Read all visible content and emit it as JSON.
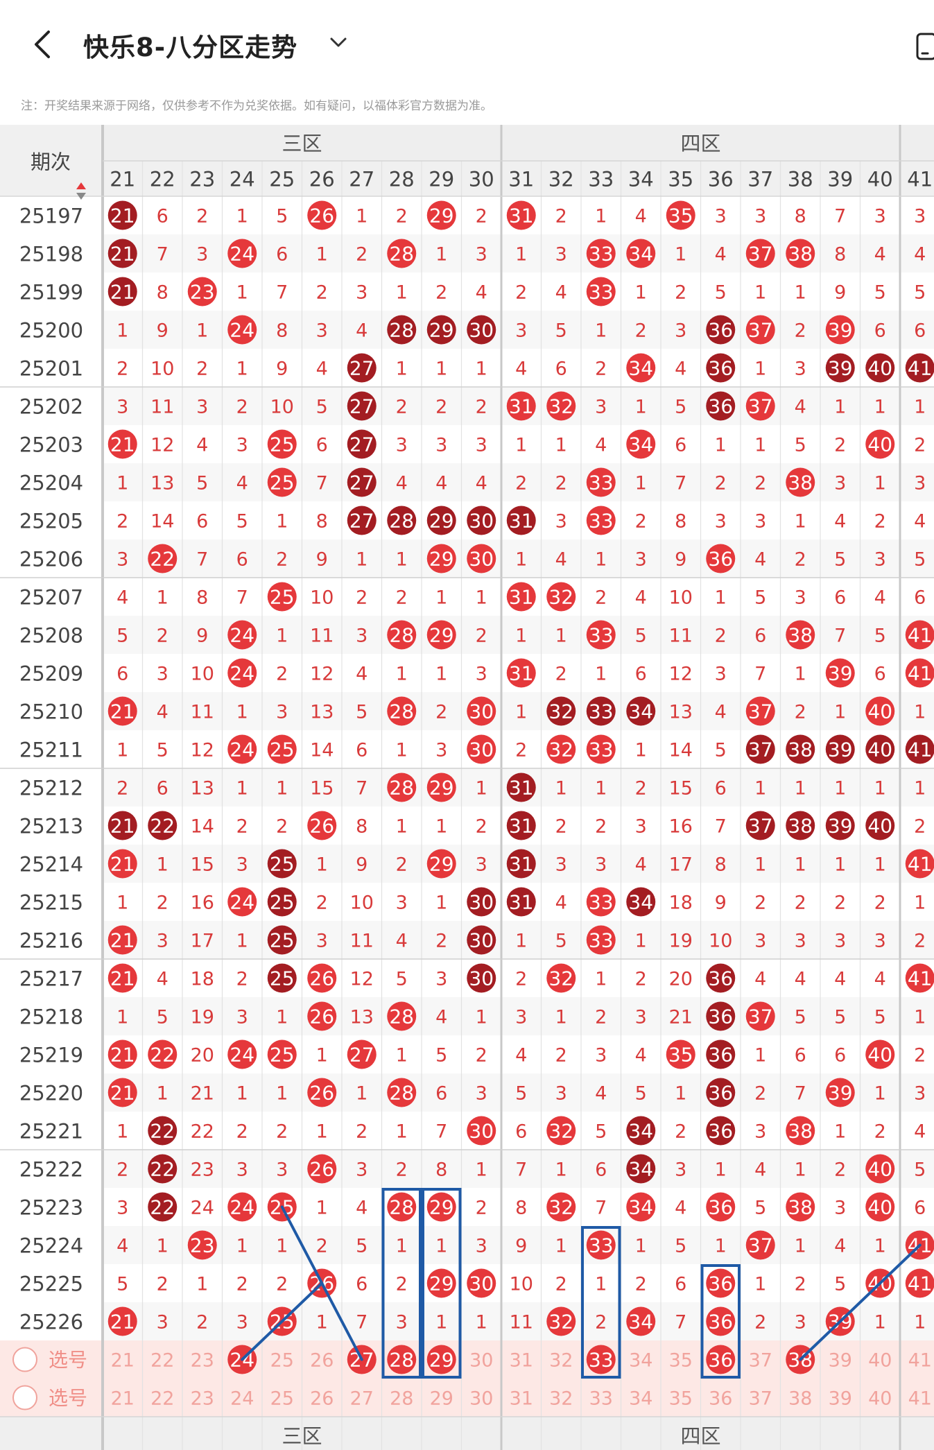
{
  "header": {
    "title": "快乐8-八分区走势",
    "back_icon": "chevron-left-icon",
    "dropdown_icon": "chevron-down-icon",
    "right_icon": "phone-icon"
  },
  "disclaimer": "注：开奖结果来源于网络，仅供参考不作为兑奖依据。如有疑问，以福体彩官方数据为准。",
  "table": {
    "period_header": "期次",
    "sort_icon": "sort-arrows-icon",
    "zones": [
      {
        "name": "三区",
        "start": 21,
        "end": 30
      },
      {
        "name": "四区",
        "start": 31,
        "end": 40
      }
    ],
    "columns": [
      21,
      22,
      23,
      24,
      25,
      26,
      27,
      28,
      29,
      30,
      31,
      32,
      33,
      34,
      35,
      36,
      37,
      38,
      39,
      40,
      41
    ],
    "rows": [
      {
        "period": "25197",
        "cells": [
          "21",
          "6",
          "2",
          "1",
          "5",
          "26",
          "1",
          "2",
          "29",
          "2",
          "31",
          "2",
          "1",
          "4",
          "35",
          "3",
          "3",
          "8",
          "7",
          "3",
          "3"
        ],
        "hits": [
          21,
          26,
          29,
          31,
          35
        ],
        "repeat": [
          21
        ]
      },
      {
        "period": "25198",
        "cells": [
          "21",
          "7",
          "3",
          "24",
          "6",
          "1",
          "2",
          "28",
          "1",
          "3",
          "1",
          "3",
          "33",
          "34",
          "1",
          "4",
          "37",
          "38",
          "8",
          "4",
          "4"
        ],
        "hits": [
          21,
          24,
          28,
          33,
          34,
          37,
          38
        ],
        "repeat": [
          21
        ]
      },
      {
        "period": "25199",
        "cells": [
          "21",
          "8",
          "23",
          "1",
          "7",
          "2",
          "3",
          "1",
          "2",
          "4",
          "2",
          "4",
          "33",
          "1",
          "2",
          "5",
          "1",
          "1",
          "9",
          "5",
          "5"
        ],
        "hits": [
          21,
          23,
          33
        ],
        "repeat": [
          21
        ]
      },
      {
        "period": "25200",
        "cells": [
          "1",
          "9",
          "1",
          "24",
          "8",
          "3",
          "4",
          "28",
          "29",
          "30",
          "3",
          "5",
          "1",
          "2",
          "3",
          "36",
          "37",
          "2",
          "39",
          "6",
          "6"
        ],
        "hits": [
          24,
          28,
          29,
          30,
          36,
          37,
          39
        ],
        "repeat": [
          28,
          29,
          30,
          36
        ]
      },
      {
        "period": "25201",
        "cells": [
          "2",
          "10",
          "2",
          "1",
          "9",
          "4",
          "27",
          "1",
          "1",
          "1",
          "4",
          "6",
          "2",
          "34",
          "4",
          "36",
          "1",
          "3",
          "39",
          "40",
          "41"
        ],
        "hits": [
          27,
          34,
          36,
          39,
          40,
          41
        ],
        "repeat": [
          27,
          36,
          39,
          40,
          41
        ]
      },
      {
        "period": "25202",
        "cells": [
          "3",
          "11",
          "3",
          "2",
          "10",
          "5",
          "27",
          "2",
          "2",
          "2",
          "31",
          "32",
          "3",
          "1",
          "5",
          "36",
          "37",
          "4",
          "1",
          "1",
          "1"
        ],
        "hits": [
          27,
          31,
          32,
          36,
          37
        ],
        "repeat": [
          27,
          36
        ]
      },
      {
        "period": "25203",
        "cells": [
          "21",
          "12",
          "4",
          "3",
          "25",
          "6",
          "27",
          "3",
          "3",
          "3",
          "1",
          "1",
          "4",
          "34",
          "6",
          "1",
          "1",
          "5",
          "2",
          "40",
          "2"
        ],
        "hits": [
          21,
          25,
          27,
          34,
          40
        ],
        "repeat": [
          27
        ]
      },
      {
        "period": "25204",
        "cells": [
          "1",
          "13",
          "5",
          "4",
          "25",
          "7",
          "27",
          "4",
          "4",
          "4",
          "2",
          "2",
          "33",
          "1",
          "7",
          "2",
          "2",
          "38",
          "3",
          "1",
          "3"
        ],
        "hits": [
          25,
          27,
          33,
          38
        ],
        "repeat": [
          27
        ]
      },
      {
        "period": "25205",
        "cells": [
          "2",
          "14",
          "6",
          "5",
          "1",
          "8",
          "27",
          "28",
          "29",
          "30",
          "31",
          "3",
          "33",
          "2",
          "8",
          "3",
          "3",
          "1",
          "4",
          "2",
          "4"
        ],
        "hits": [
          27,
          28,
          29,
          30,
          31,
          33
        ],
        "repeat": [
          27,
          28,
          29,
          30,
          31
        ]
      },
      {
        "period": "25206",
        "cells": [
          "3",
          "22",
          "7",
          "6",
          "2",
          "9",
          "1",
          "1",
          "29",
          "30",
          "1",
          "4",
          "1",
          "3",
          "9",
          "36",
          "4",
          "2",
          "5",
          "3",
          "5"
        ],
        "hits": [
          22,
          29,
          30,
          36
        ],
        "repeat": []
      },
      {
        "period": "25207",
        "cells": [
          "4",
          "1",
          "8",
          "7",
          "25",
          "10",
          "2",
          "2",
          "1",
          "1",
          "31",
          "32",
          "2",
          "4",
          "10",
          "1",
          "5",
          "3",
          "6",
          "4",
          "6"
        ],
        "hits": [
          25,
          31,
          32
        ],
        "repeat": []
      },
      {
        "period": "25208",
        "cells": [
          "5",
          "2",
          "9",
          "24",
          "1",
          "11",
          "3",
          "28",
          "29",
          "2",
          "1",
          "1",
          "33",
          "5",
          "11",
          "2",
          "6",
          "38",
          "7",
          "5",
          "41"
        ],
        "hits": [
          24,
          28,
          29,
          33,
          38,
          41
        ],
        "repeat": []
      },
      {
        "period": "25209",
        "cells": [
          "6",
          "3",
          "10",
          "24",
          "2",
          "12",
          "4",
          "1",
          "1",
          "3",
          "31",
          "2",
          "1",
          "6",
          "12",
          "3",
          "7",
          "1",
          "39",
          "6",
          "41"
        ],
        "hits": [
          24,
          31,
          39,
          41
        ],
        "repeat": []
      },
      {
        "period": "25210",
        "cells": [
          "21",
          "4",
          "11",
          "1",
          "3",
          "13",
          "5",
          "28",
          "2",
          "30",
          "1",
          "32",
          "33",
          "34",
          "13",
          "4",
          "37",
          "2",
          "1",
          "40",
          "1"
        ],
        "hits": [
          21,
          28,
          30,
          32,
          33,
          34,
          37,
          40
        ],
        "repeat": [
          32,
          33,
          34
        ]
      },
      {
        "period": "25211",
        "cells": [
          "1",
          "5",
          "12",
          "24",
          "25",
          "14",
          "6",
          "1",
          "3",
          "30",
          "2",
          "32",
          "33",
          "1",
          "14",
          "5",
          "37",
          "38",
          "39",
          "40",
          "41"
        ],
        "hits": [
          24,
          25,
          30,
          32,
          33,
          37,
          38,
          39,
          40,
          41
        ],
        "repeat": [
          37,
          38,
          39,
          40,
          41
        ]
      },
      {
        "period": "25212",
        "cells": [
          "2",
          "6",
          "13",
          "1",
          "1",
          "15",
          "7",
          "28",
          "29",
          "1",
          "31",
          "1",
          "1",
          "2",
          "15",
          "6",
          "1",
          "1",
          "1",
          "1",
          "1"
        ],
        "hits": [
          28,
          29,
          31
        ],
        "repeat": [
          31
        ]
      },
      {
        "period": "25213",
        "cells": [
          "21",
          "22",
          "14",
          "2",
          "2",
          "26",
          "8",
          "1",
          "1",
          "2",
          "31",
          "2",
          "2",
          "3",
          "16",
          "7",
          "37",
          "38",
          "39",
          "40",
          "2"
        ],
        "hits": [
          21,
          22,
          26,
          31,
          37,
          38,
          39,
          40
        ],
        "repeat": [
          21,
          22,
          31,
          37,
          38,
          39,
          40
        ]
      },
      {
        "period": "25214",
        "cells": [
          "21",
          "1",
          "15",
          "3",
          "25",
          "1",
          "9",
          "2",
          "29",
          "3",
          "31",
          "3",
          "3",
          "4",
          "17",
          "8",
          "1",
          "1",
          "1",
          "1",
          "41"
        ],
        "hits": [
          21,
          25,
          29,
          31,
          41
        ],
        "repeat": [
          25,
          31
        ]
      },
      {
        "period": "25215",
        "cells": [
          "1",
          "2",
          "16",
          "24",
          "25",
          "2",
          "10",
          "3",
          "1",
          "30",
          "31",
          "4",
          "33",
          "34",
          "18",
          "9",
          "2",
          "2",
          "2",
          "2",
          "1"
        ],
        "hits": [
          24,
          25,
          30,
          31,
          33,
          34
        ],
        "repeat": [
          25,
          30,
          31,
          34
        ]
      },
      {
        "period": "25216",
        "cells": [
          "21",
          "3",
          "17",
          "1",
          "25",
          "3",
          "11",
          "4",
          "2",
          "30",
          "1",
          "5",
          "33",
          "1",
          "19",
          "10",
          "3",
          "3",
          "3",
          "3",
          "2"
        ],
        "hits": [
          21,
          25,
          30,
          33
        ],
        "repeat": [
          25,
          30
        ]
      },
      {
        "period": "25217",
        "cells": [
          "21",
          "4",
          "18",
          "2",
          "25",
          "26",
          "12",
          "5",
          "3",
          "30",
          "2",
          "32",
          "1",
          "2",
          "20",
          "36",
          "4",
          "4",
          "4",
          "4",
          "41"
        ],
        "hits": [
          21,
          25,
          26,
          30,
          32,
          36,
          41
        ],
        "repeat": [
          25,
          30,
          36
        ]
      },
      {
        "period": "25218",
        "cells": [
          "1",
          "5",
          "19",
          "3",
          "1",
          "26",
          "13",
          "28",
          "4",
          "1",
          "3",
          "1",
          "2",
          "3",
          "21",
          "36",
          "37",
          "5",
          "5",
          "5",
          "1"
        ],
        "hits": [
          26,
          28,
          36,
          37
        ],
        "repeat": [
          36
        ]
      },
      {
        "period": "25219",
        "cells": [
          "21",
          "22",
          "20",
          "24",
          "25",
          "1",
          "27",
          "1",
          "5",
          "2",
          "4",
          "2",
          "3",
          "4",
          "35",
          "36",
          "1",
          "6",
          "6",
          "40",
          "2"
        ],
        "hits": [
          21,
          22,
          24,
          25,
          27,
          35,
          36,
          40
        ],
        "repeat": [
          36
        ]
      },
      {
        "period": "25220",
        "cells": [
          "21",
          "1",
          "21",
          "1",
          "1",
          "26",
          "1",
          "28",
          "6",
          "3",
          "5",
          "3",
          "4",
          "5",
          "1",
          "36",
          "2",
          "7",
          "39",
          "1",
          "3"
        ],
        "hits": [
          21,
          26,
          28,
          36,
          39
        ],
        "repeat": [
          36
        ]
      },
      {
        "period": "25221",
        "cells": [
          "1",
          "22",
          "22",
          "2",
          "2",
          "1",
          "2",
          "1",
          "7",
          "30",
          "6",
          "32",
          "5",
          "34",
          "2",
          "36",
          "3",
          "38",
          "1",
          "2",
          "4"
        ],
        "hits": [
          22,
          30,
          32,
          34,
          36,
          38
        ],
        "repeat": [
          22,
          34,
          36
        ]
      },
      {
        "period": "25222",
        "cells": [
          "2",
          "22",
          "23",
          "3",
          "3",
          "26",
          "3",
          "2",
          "8",
          "1",
          "7",
          "1",
          "6",
          "34",
          "3",
          "1",
          "4",
          "1",
          "2",
          "40",
          "5"
        ],
        "hits": [
          22,
          26,
          34,
          40
        ],
        "repeat": [
          22,
          34
        ]
      },
      {
        "period": "25223",
        "cells": [
          "3",
          "22",
          "24",
          "24",
          "25",
          "1",
          "4",
          "28",
          "29",
          "2",
          "8",
          "32",
          "7",
          "34",
          "4",
          "36",
          "5",
          "38",
          "3",
          "40",
          "6"
        ],
        "hits": [
          22,
          24,
          25,
          28,
          29,
          32,
          34,
          36,
          38,
          40
        ],
        "repeat": [
          22
        ]
      },
      {
        "period": "25224",
        "cells": [
          "4",
          "1",
          "23",
          "1",
          "1",
          "2",
          "5",
          "1",
          "1",
          "3",
          "9",
          "1",
          "33",
          "1",
          "5",
          "1",
          "37",
          "1",
          "4",
          "1",
          "41"
        ],
        "hits": [
          23,
          33,
          37,
          41
        ],
        "repeat": []
      },
      {
        "period": "25225",
        "cells": [
          "5",
          "2",
          "1",
          "2",
          "2",
          "26",
          "6",
          "2",
          "29",
          "30",
          "10",
          "2",
          "1",
          "2",
          "6",
          "36",
          "1",
          "2",
          "5",
          "40",
          "41"
        ],
        "hits": [
          26,
          29,
          30,
          36,
          40,
          41
        ],
        "repeat": []
      },
      {
        "period": "25226",
        "cells": [
          "21",
          "3",
          "2",
          "3",
          "25",
          "1",
          "7",
          "3",
          "1",
          "1",
          "11",
          "32",
          "2",
          "34",
          "7",
          "36",
          "2",
          "3",
          "39",
          "1",
          "1"
        ],
        "hits": [
          21,
          25,
          32,
          34,
          36,
          39
        ],
        "repeat": []
      }
    ],
    "select_rows": [
      {
        "label": "选号",
        "picked": [
          24,
          27,
          28,
          29,
          33,
          36,
          38
        ]
      },
      {
        "label": "选号",
        "picked": []
      }
    ]
  },
  "colors": {
    "hit": "#e5383b",
    "repeat": "#a31d22",
    "text": "#d83a3a",
    "zone_header": "#eeeeee",
    "select_bg": "#fde8e5",
    "select_text": "#f1a39d",
    "annotation": "#1f5aa6"
  },
  "annotation": {
    "boxes": [
      {
        "col_from": 28,
        "col_to": 28,
        "row_from": "25223",
        "row_to": "select"
      },
      {
        "col_from": 29,
        "col_to": 29,
        "row_from": "25223",
        "row_to": "select"
      },
      {
        "col_from": 33,
        "col_to": 33,
        "row_from": "25224",
        "row_to": "select"
      },
      {
        "col_from": 36,
        "col_to": 36,
        "row_from": "25225",
        "row_to": "select"
      }
    ],
    "lines": [
      {
        "from": [
          25,
          "25223"
        ],
        "to": [
          27,
          "select"
        ]
      },
      {
        "from": [
          24,
          "select"
        ],
        "to": [
          26,
          "25225"
        ]
      },
      {
        "from": [
          38,
          "select"
        ],
        "to": [
          41,
          "25224"
        ]
      }
    ]
  }
}
